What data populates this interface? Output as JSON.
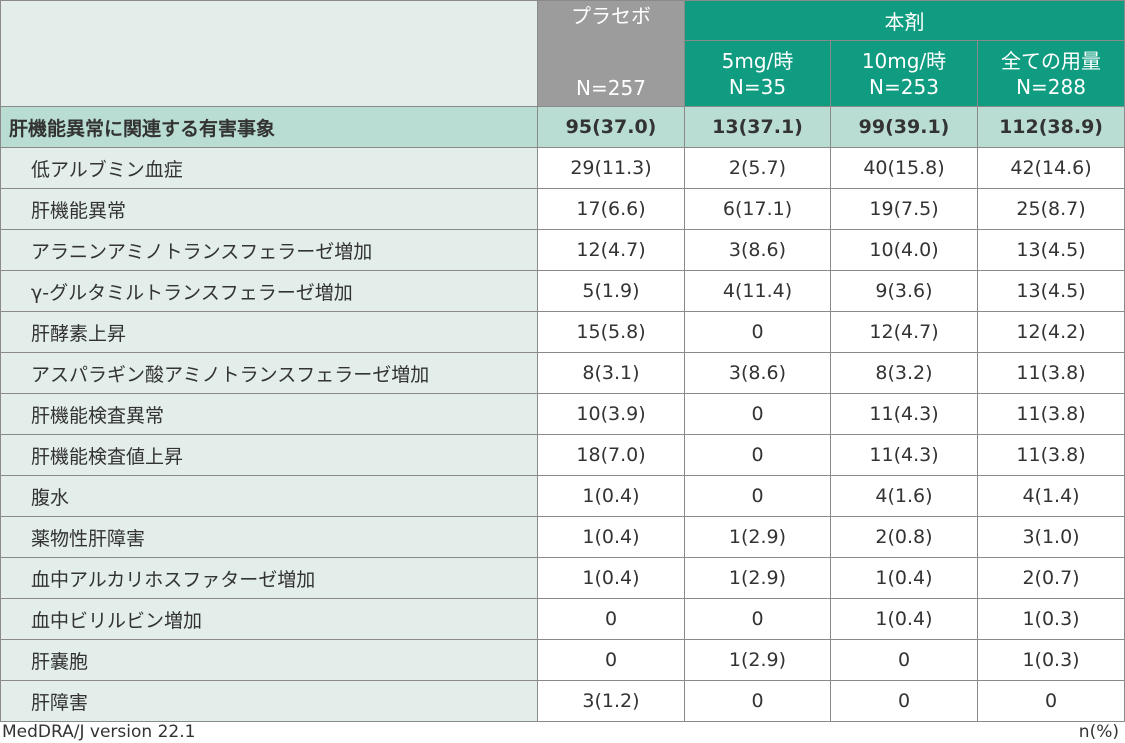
{
  "header": {
    "placebo_label": "プラセボ",
    "placebo_n": "N=257",
    "drug_group_label": "本剤",
    "doses": [
      {
        "dose": "5mg/時",
        "n": "N=35"
      },
      {
        "dose": "10mg/時",
        "n": "N=253"
      },
      {
        "dose": "全ての用量",
        "n": "N=288"
      }
    ]
  },
  "summary": {
    "label": "肝機能異常に関連する有害事象",
    "values": [
      "95(37.0)",
      "13(37.1)",
      "99(39.1)",
      "112(38.9)"
    ]
  },
  "rows": [
    {
      "label": "低アルブミン血症",
      "values": [
        "29(11.3)",
        "2(5.7)",
        "40(15.8)",
        "42(14.6)"
      ]
    },
    {
      "label": "肝機能異常",
      "values": [
        "17(6.6)",
        "6(17.1)",
        "19(7.5)",
        "25(8.7)"
      ]
    },
    {
      "label": "アラニンアミノトランスフェラーゼ増加",
      "values": [
        "12(4.7)",
        "3(8.6)",
        "10(4.0)",
        "13(4.5)"
      ]
    },
    {
      "label": "γ-グルタミルトランスフェラーゼ増加",
      "values": [
        "5(1.9)",
        "4(11.4)",
        "9(3.6)",
        "13(4.5)"
      ]
    },
    {
      "label": "肝酵素上昇",
      "values": [
        "15(5.8)",
        "0",
        "12(4.7)",
        "12(4.2)"
      ]
    },
    {
      "label": "アスパラギン酸アミノトランスフェラーゼ増加",
      "values": [
        "8(3.1)",
        "3(8.6)",
        "8(3.2)",
        "11(3.8)"
      ]
    },
    {
      "label": "肝機能検査異常",
      "values": [
        "10(3.9)",
        "0",
        "11(4.3)",
        "11(3.8)"
      ]
    },
    {
      "label": "肝機能検査値上昇",
      "values": [
        "18(7.0)",
        "0",
        "11(4.3)",
        "11(3.8)"
      ]
    },
    {
      "label": "腹水",
      "values": [
        "1(0.4)",
        "0",
        "4(1.6)",
        "4(1.4)"
      ]
    },
    {
      "label": "薬物性肝障害",
      "values": [
        "1(0.4)",
        "1(2.9)",
        "2(0.8)",
        "3(1.0)"
      ]
    },
    {
      "label": "血中アルカリホスファターゼ増加",
      "values": [
        "1(0.4)",
        "1(2.9)",
        "1(0.4)",
        "2(0.7)"
      ]
    },
    {
      "label": "血中ビリルビン増加",
      "values": [
        "0",
        "0",
        "1(0.4)",
        "1(0.3)"
      ]
    },
    {
      "label": "肝嚢胞",
      "values": [
        "0",
        "1(2.9)",
        "0",
        "1(0.3)"
      ]
    },
    {
      "label": "肝障害",
      "values": [
        "3(1.2)",
        "0",
        "0",
        "0"
      ]
    }
  ],
  "footer": {
    "left": "MedDRA/J version 22.1",
    "right": "n(%)"
  },
  "colors": {
    "placebo_header": "#9c9c9c",
    "drug_header": "#0f9c80",
    "summary_row": "#b9ddd3",
    "label_column": "#e3eeeb",
    "border": "#8a8a8a"
  }
}
